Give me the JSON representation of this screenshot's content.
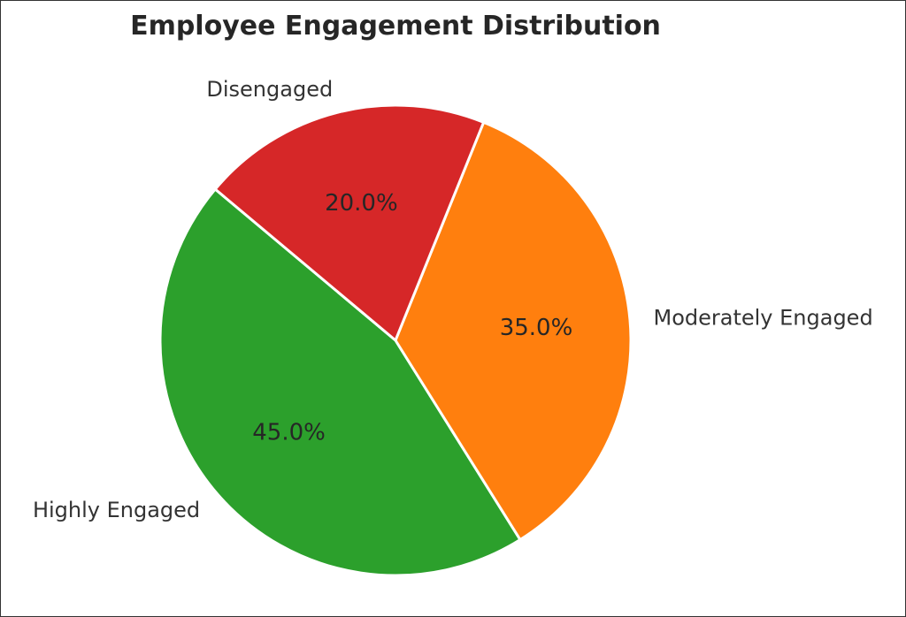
{
  "chart_data": {
    "type": "pie",
    "title": "Employee Engagement Distribution",
    "categories": [
      "Highly Engaged",
      "Moderately Engaged",
      "Disengaged"
    ],
    "values": [
      45.0,
      35.0,
      20.0
    ],
    "percent_labels": [
      "45.0%",
      "35.0%",
      "20.0%"
    ],
    "colors": [
      "#2ca02c",
      "#ff7f0e",
      "#d62728"
    ],
    "start_angle_deg": 140,
    "direction": "counterclockwise",
    "legend": "none"
  }
}
